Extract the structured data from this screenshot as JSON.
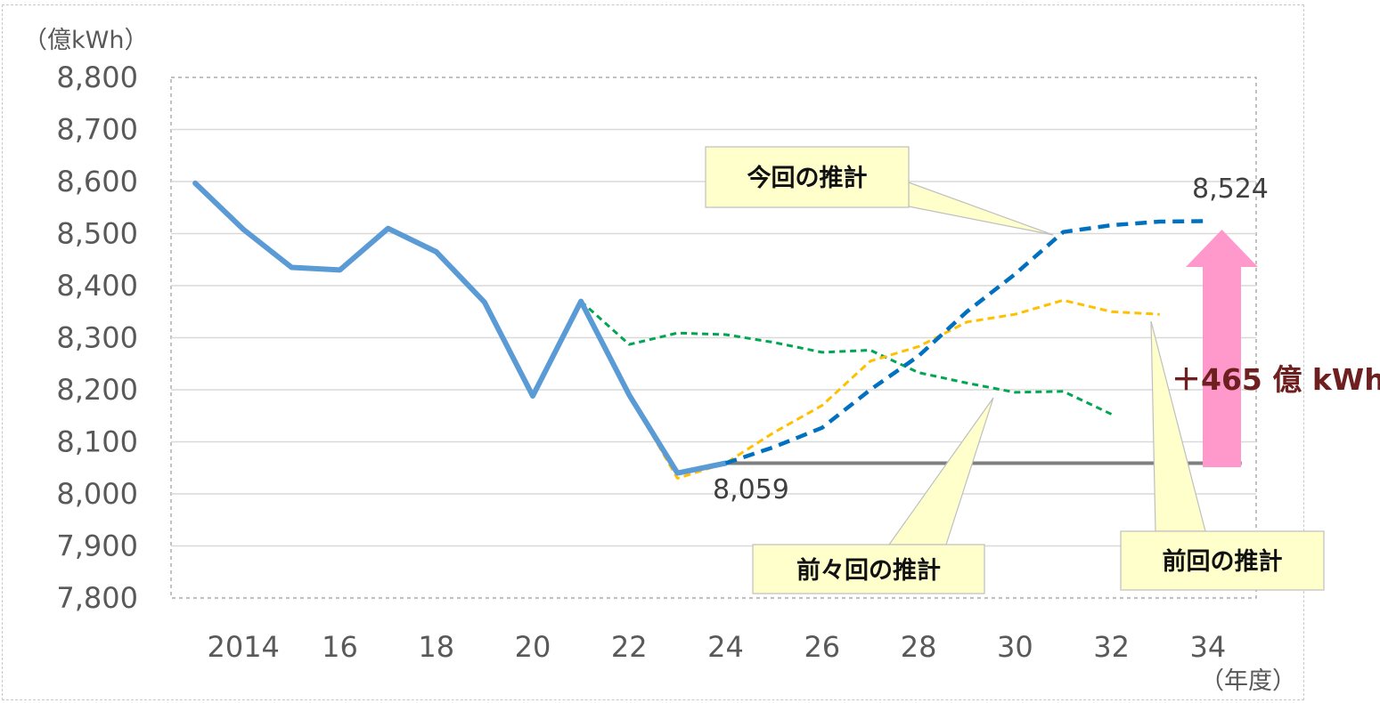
{
  "chart_data": {
    "type": "line",
    "ylabel": "（億kWh）",
    "xlabel": "（年度）",
    "ylim": [
      7800,
      8800
    ],
    "xlim": [
      2012.5,
      2035
    ],
    "y_ticks": [
      "8,800",
      "8,700",
      "8,600",
      "8,500",
      "8,400",
      "8,300",
      "8,200",
      "8,100",
      "8,000",
      "7,900",
      "7,800"
    ],
    "x_ticks": [
      {
        "x": 2014,
        "label": "2014"
      },
      {
        "x": 2016,
        "label": "16"
      },
      {
        "x": 2018,
        "label": "18"
      },
      {
        "x": 2020,
        "label": "20"
      },
      {
        "x": 2022,
        "label": "22"
      },
      {
        "x": 2024,
        "label": "24"
      },
      {
        "x": 2026,
        "label": "26"
      },
      {
        "x": 2028,
        "label": "28"
      },
      {
        "x": 2030,
        "label": "30"
      },
      {
        "x": 2032,
        "label": "32"
      },
      {
        "x": 2034,
        "label": "34"
      }
    ],
    "grid": true,
    "series": [
      {
        "key": "actual",
        "style": "solid",
        "color": "#5b9bd5",
        "x": [
          2013,
          2014,
          2015,
          2016,
          2017,
          2018,
          2019,
          2020,
          2021,
          2022,
          2023,
          2024
        ],
        "values": [
          8597,
          8508,
          8435,
          8430,
          8510,
          8465,
          8368,
          8188,
          8370,
          8190,
          8040,
          8059
        ]
      },
      {
        "key": "current",
        "style": "dashed",
        "color": "#0070c0",
        "x": [
          2024,
          2025,
          2026,
          2027,
          2028,
          2029,
          2030,
          2031,
          2032,
          2033,
          2034
        ],
        "values": [
          8059,
          8090,
          8127,
          8200,
          8265,
          8350,
          8422,
          8503,
          8516,
          8523,
          8524
        ]
      },
      {
        "key": "previous",
        "style": "dashed",
        "color": "#ffc000",
        "x": [
          2021,
          2022,
          2023,
          2024,
          2025,
          2026,
          2027,
          2028,
          2029,
          2030,
          2031,
          2032,
          2033
        ],
        "values": [
          8370,
          8190,
          8030,
          8059,
          8118,
          8170,
          8255,
          8283,
          8330,
          8345,
          8372,
          8350,
          8345
        ]
      },
      {
        "key": "before_previous",
        "style": "dashed",
        "color": "#00a651",
        "x": [
          2021,
          2022,
          2023,
          2024,
          2025,
          2026,
          2027,
          2028,
          2029,
          2030,
          2031,
          2032
        ],
        "values": [
          8370,
          8287,
          8309,
          8306,
          8291,
          8272,
          8276,
          8233,
          8213,
          8195,
          8197,
          8153
        ]
      }
    ],
    "baseline": {
      "value": 8059,
      "x_start": 2024,
      "x_end": 2034.7,
      "color": "#7f7f7f"
    },
    "annotations": {
      "start_value": "8,059",
      "end_value": "8,524",
      "increase": "＋465 億 kWh"
    },
    "callouts": {
      "current": "今回の推計",
      "previous": "前回の推計",
      "before_previous": "前々回の推計"
    },
    "arrow_color": "#ff99cc",
    "callout_fill": "#ffffcc"
  }
}
